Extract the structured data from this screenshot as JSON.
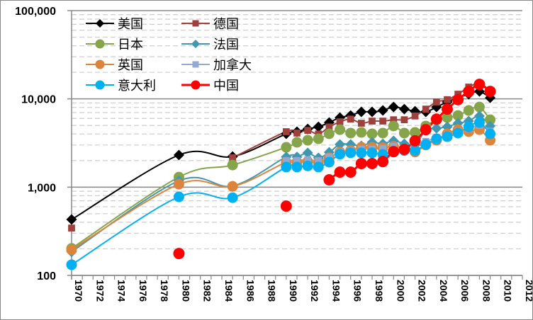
{
  "chart_data": {
    "type": "line",
    "title": "",
    "xlabel": "",
    "ylabel": "",
    "yscale": "log",
    "ylim": [
      100,
      100000
    ],
    "xlim": [
      1970,
      2012
    ],
    "yticks": [
      "100",
      "1,000",
      "10,000",
      "100,000"
    ],
    "ytick_values": [
      100,
      1000,
      10000,
      100000
    ],
    "xticks": [
      "1970",
      "1972",
      "1974",
      "1976",
      "1978",
      "1980",
      "1982",
      "1984",
      "1986",
      "1988",
      "1990",
      "1992",
      "1994",
      "1996",
      "1998",
      "2000",
      "2002",
      "2004",
      "2006",
      "2008",
      "2010",
      "2012"
    ],
    "grid": "major solid, minor dashed",
    "legend": "top-left",
    "x": [
      1970,
      1980,
      1985,
      1990,
      1991,
      1992,
      1993,
      1994,
      1995,
      1996,
      1997,
      1998,
      1999,
      2000,
      2001,
      2002,
      2003,
      2004,
      2005,
      2006,
      2007,
      2008,
      2009
    ],
    "series": [
      {
        "name": "美国",
        "color": "#000000",
        "marker": "diamond",
        "smooth": true,
        "values": [
          430,
          2310,
          2220,
          4020,
          4250,
          4570,
          4830,
          5400,
          6140,
          6490,
          7120,
          7120,
          7390,
          8100,
          7660,
          7250,
          7120,
          8100,
          9220,
          10300,
          11300,
          12160,
          10300
        ]
      },
      {
        "name": "德国",
        "color": "#A0403C",
        "marker": "square",
        "smooth": true,
        "values": [
          344,
          null,
          2150,
          4250,
          4100,
          4400,
          4000,
          4800,
          5500,
          5900,
          5300,
          5600,
          5600,
          5800,
          5800,
          6400,
          7660,
          9220,
          9800,
          11300,
          13600,
          14900,
          12300
        ]
      },
      {
        "name": "日本",
        "color": "#86A54A",
        "marker": "circle",
        "smooth": true,
        "values": [
          202,
          1300,
          1780,
          2830,
          3220,
          3400,
          3530,
          4020,
          4480,
          4100,
          4170,
          4020,
          4100,
          4930,
          4100,
          4170,
          4930,
          5800,
          6140,
          6490,
          7390,
          8100,
          5800
        ]
      },
      {
        "name": "法国",
        "color": "#4196B0",
        "marker": "diamond",
        "smooth": true,
        "values": [
          185,
          1180,
          1030,
          2200,
          2200,
          2450,
          2150,
          2480,
          3050,
          3050,
          2940,
          3220,
          3100,
          3350,
          3100,
          3000,
          4400,
          4640,
          4830,
          5300,
          5600,
          6400,
          4930
        ]
      },
      {
        "name": "英国",
        "color": "#DD843C",
        "marker": "circle",
        "smooth": true,
        "values": [
          195,
          1080,
          1020,
          1920,
          1920,
          1950,
          1900,
          2150,
          2500,
          2600,
          2830,
          2830,
          2800,
          2900,
          2700,
          2500,
          3000,
          3400,
          4020,
          4480,
          4250,
          4480,
          3400
        ]
      },
      {
        "name": "加拿大",
        "color": "#93A9CF",
        "marker": "square",
        "smooth": true,
        "values": [
          null,
          null,
          null,
          2000,
          2000,
          2050,
          2000,
          2200,
          2500,
          2600,
          2700,
          2700,
          2750,
          2900,
          2800,
          2800,
          3300,
          3600,
          3900,
          4300,
          4600,
          5000,
          4300
        ]
      },
      {
        "name": "意大利",
        "color": "#00B0F0",
        "marker": "circle",
        "smooth": true,
        "values": [
          132,
          777,
          760,
          1690,
          1690,
          1740,
          1690,
          1920,
          2360,
          2450,
          2450,
          2450,
          2350,
          2500,
          2600,
          2600,
          3050,
          3530,
          3730,
          4100,
          4830,
          5400,
          4020
        ]
      },
      {
        "name": "中国",
        "color": "#FF0000",
        "marker": "circle",
        "smooth": false,
        "values": [
          null,
          177,
          null,
          610,
          null,
          null,
          null,
          1210,
          1480,
          1480,
          1850,
          1850,
          1950,
          2530,
          2680,
          3350,
          4480,
          5900,
          7660,
          9800,
          12160,
          14600,
          12160
        ]
      }
    ]
  }
}
